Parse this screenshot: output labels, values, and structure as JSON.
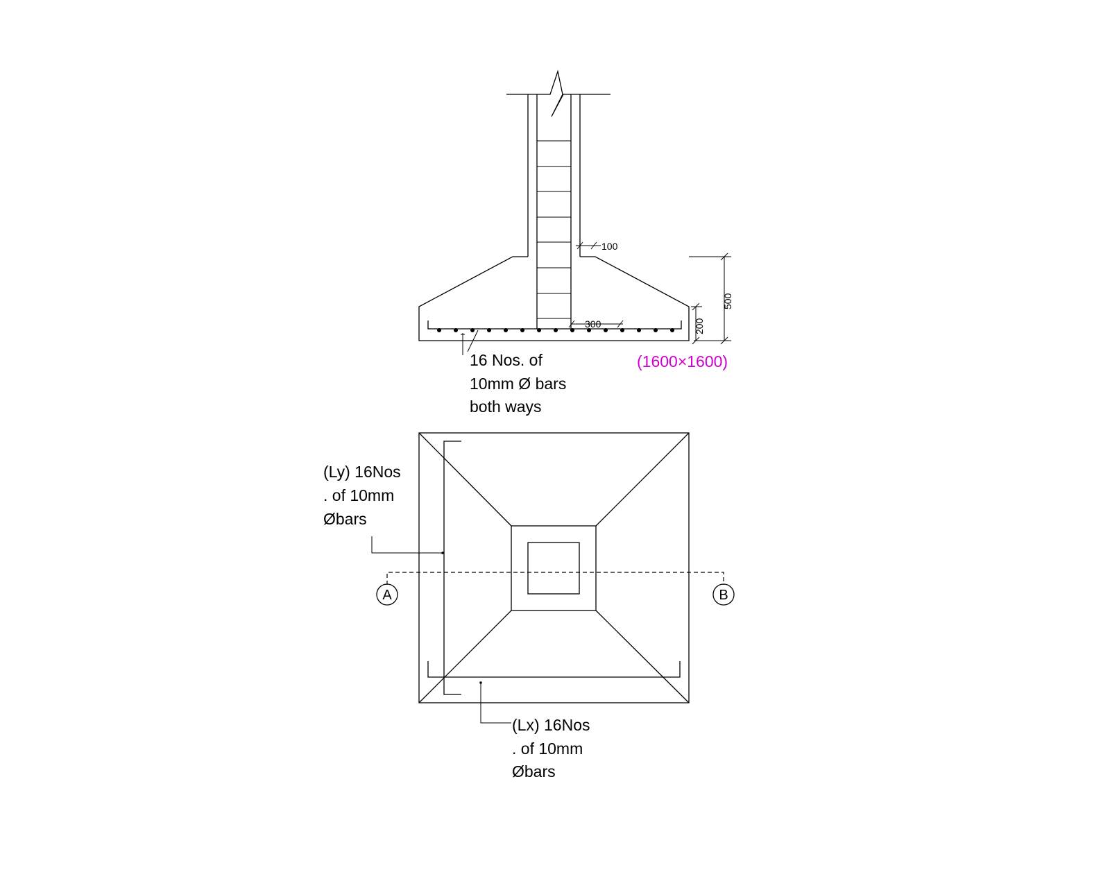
{
  "section": {
    "dim_top_offset": "100",
    "dim_total_depth": "500",
    "dim_edge_depth": "200",
    "dim_projection": "300",
    "footing_size": "(1600×1600)",
    "bar_note": [
      "16 Nos. of",
      "10mm Ø bars",
      "both ways"
    ]
  },
  "plan": {
    "ly_note": [
      "(Ly) 16Nos",
      ". of 10mm",
      "Øbars"
    ],
    "lx_note": [
      "(Lx) 16Nos",
      ". of 10mm",
      "Øbars"
    ],
    "section_marker_left": "A",
    "section_marker_right": "B"
  }
}
